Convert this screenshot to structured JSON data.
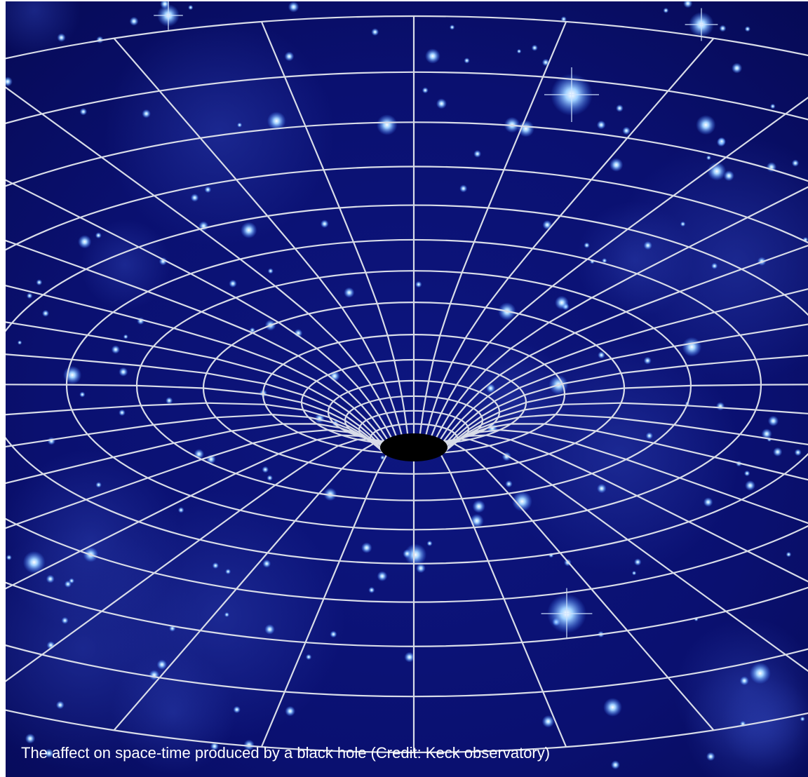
{
  "caption": "The affect on space-time produced by a black hole (Credit: Keck observatory)"
}
